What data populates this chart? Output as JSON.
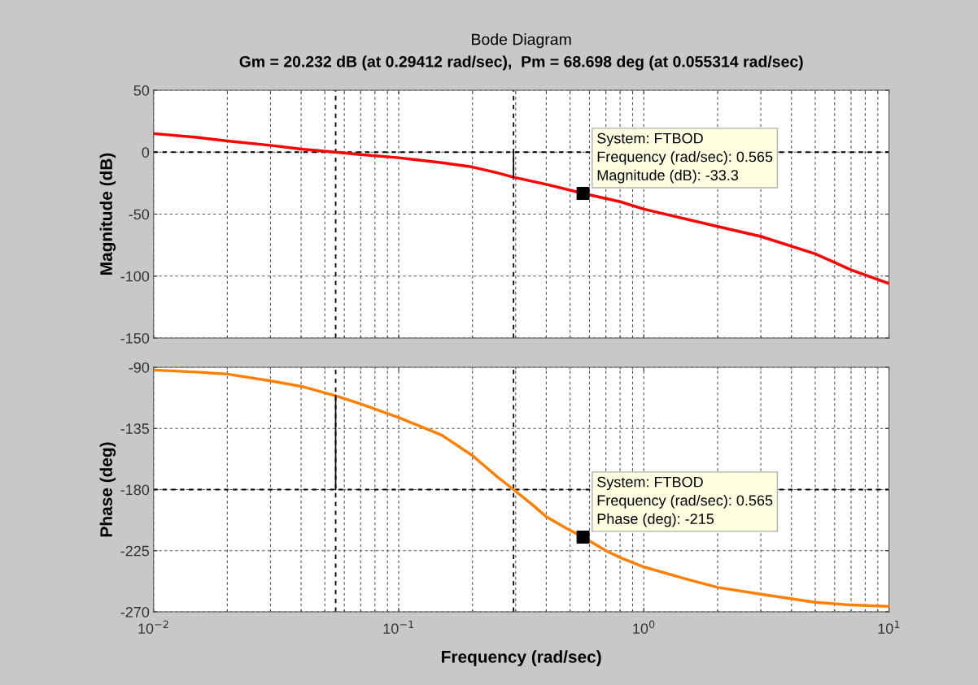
{
  "chart_data": [
    {
      "type": "line",
      "title": "Bode Diagram",
      "subtitle": "Gm = 20.232 dB (at 0.29412 rad/sec),  Pm = 68.698 deg (at 0.055314 rad/sec)",
      "ylabel": "Magnitude (dB)",
      "log": "x",
      "grid": true,
      "tick_labels": "y",
      "xlim": [
        0.01,
        10
      ],
      "ylim": [
        -150,
        50
      ],
      "yticks": [
        -150,
        -100,
        -50,
        0,
        50
      ],
      "series": [
        {
          "color": "#ff0000",
          "x": [
            0.01,
            0.015,
            0.02,
            0.03,
            0.04,
            0.055,
            0.07,
            0.1,
            0.15,
            0.2,
            0.25,
            0.29412,
            0.4,
            0.565,
            0.8,
            1,
            2,
            3,
            5,
            7,
            10
          ],
          "values": [
            15,
            12,
            9,
            5.5,
            2.5,
            0,
            -2,
            -4.5,
            -8.5,
            -12,
            -16.5,
            -20.2,
            -26,
            -33.3,
            -40,
            -46,
            -60,
            -68,
            -82,
            -95,
            -106
          ]
        },
        {
          "type": "line",
          "color": "#000000",
          "x": [
            0.29412,
            0.29412
          ],
          "values": [
            0,
            -20.2
          ]
        },
        {
          "type": "scatter",
          "marker": "square",
          "color": "#000000",
          "x": [
            0.565
          ],
          "values": [
            -33.3
          ]
        }
      ],
      "ref_lines": [
        {
          "axis": "y",
          "value": 0,
          "color": "#000000",
          "line_style": "dashed"
        },
        {
          "axis": "x",
          "value": 0.055314,
          "color": "#000000",
          "line_style": "dashed"
        },
        {
          "axis": "x",
          "value": 0.29412,
          "color": "#000000",
          "line_style": "dashed"
        }
      ],
      "annotations": [
        {
          "text": "System: FTBOD\nFrequency (rad/sec): 0.565\nMagnitude (dB): -33.3",
          "x": 0.565,
          "y": -33.3
        }
      ]
    },
    {
      "type": "line",
      "xlabel": "Frequency (rad/sec)",
      "ylabel": "Phase (deg)",
      "log": "x",
      "grid": true,
      "xlim": [
        0.01,
        10
      ],
      "xticks": [
        {
          "value": 0.01,
          "label": "10$^{−2}$"
        },
        {
          "value": 0.1,
          "label": "10$^{−1}$"
        },
        {
          "value": 1,
          "label": "10$^{0}$"
        },
        {
          "value": 10,
          "label": "10$^{1}$"
        }
      ],
      "ylim": [
        -270,
        -90
      ],
      "yticks": [
        -270,
        -225,
        -180,
        -135,
        -90
      ],
      "series": [
        {
          "color": "#ff8000",
          "x": [
            0.01,
            0.015,
            0.02,
            0.03,
            0.04,
            0.055314,
            0.07,
            0.1,
            0.15,
            0.2,
            0.25,
            0.29412,
            0.35,
            0.4,
            0.5,
            0.565,
            0.7,
            0.8,
            1,
            1.5,
            2,
            3,
            5,
            7,
            10
          ],
          "values": [
            -92,
            -93.5,
            -95,
            -100,
            -104,
            -111,
            -117,
            -127,
            -140,
            -155,
            -170,
            -180,
            -191,
            -200,
            -210,
            -215,
            -225,
            -230,
            -237,
            -246,
            -252,
            -257,
            -263,
            -265,
            -266
          ]
        },
        {
          "type": "line",
          "color": "#000000",
          "x": [
            0.055314,
            0.055314
          ],
          "values": [
            -180,
            -111
          ]
        },
        {
          "type": "scatter",
          "marker": "square",
          "color": "#000000",
          "x": [
            0.565
          ],
          "values": [
            -215
          ]
        }
      ],
      "ref_lines": [
        {
          "axis": "y",
          "value": -180,
          "color": "#000000",
          "line_style": "dashed"
        },
        {
          "axis": "x",
          "value": 0.055314,
          "color": "#000000",
          "line_style": "dashed"
        },
        {
          "axis": "x",
          "value": 0.29412,
          "color": "#000000",
          "line_style": "dashed"
        }
      ],
      "annotations": [
        {
          "text": "System: FTBOD\nFrequency (rad/sec): 0.565\nPhase (deg): -215",
          "x": 0.565,
          "y": -215
        }
      ]
    }
  ]
}
